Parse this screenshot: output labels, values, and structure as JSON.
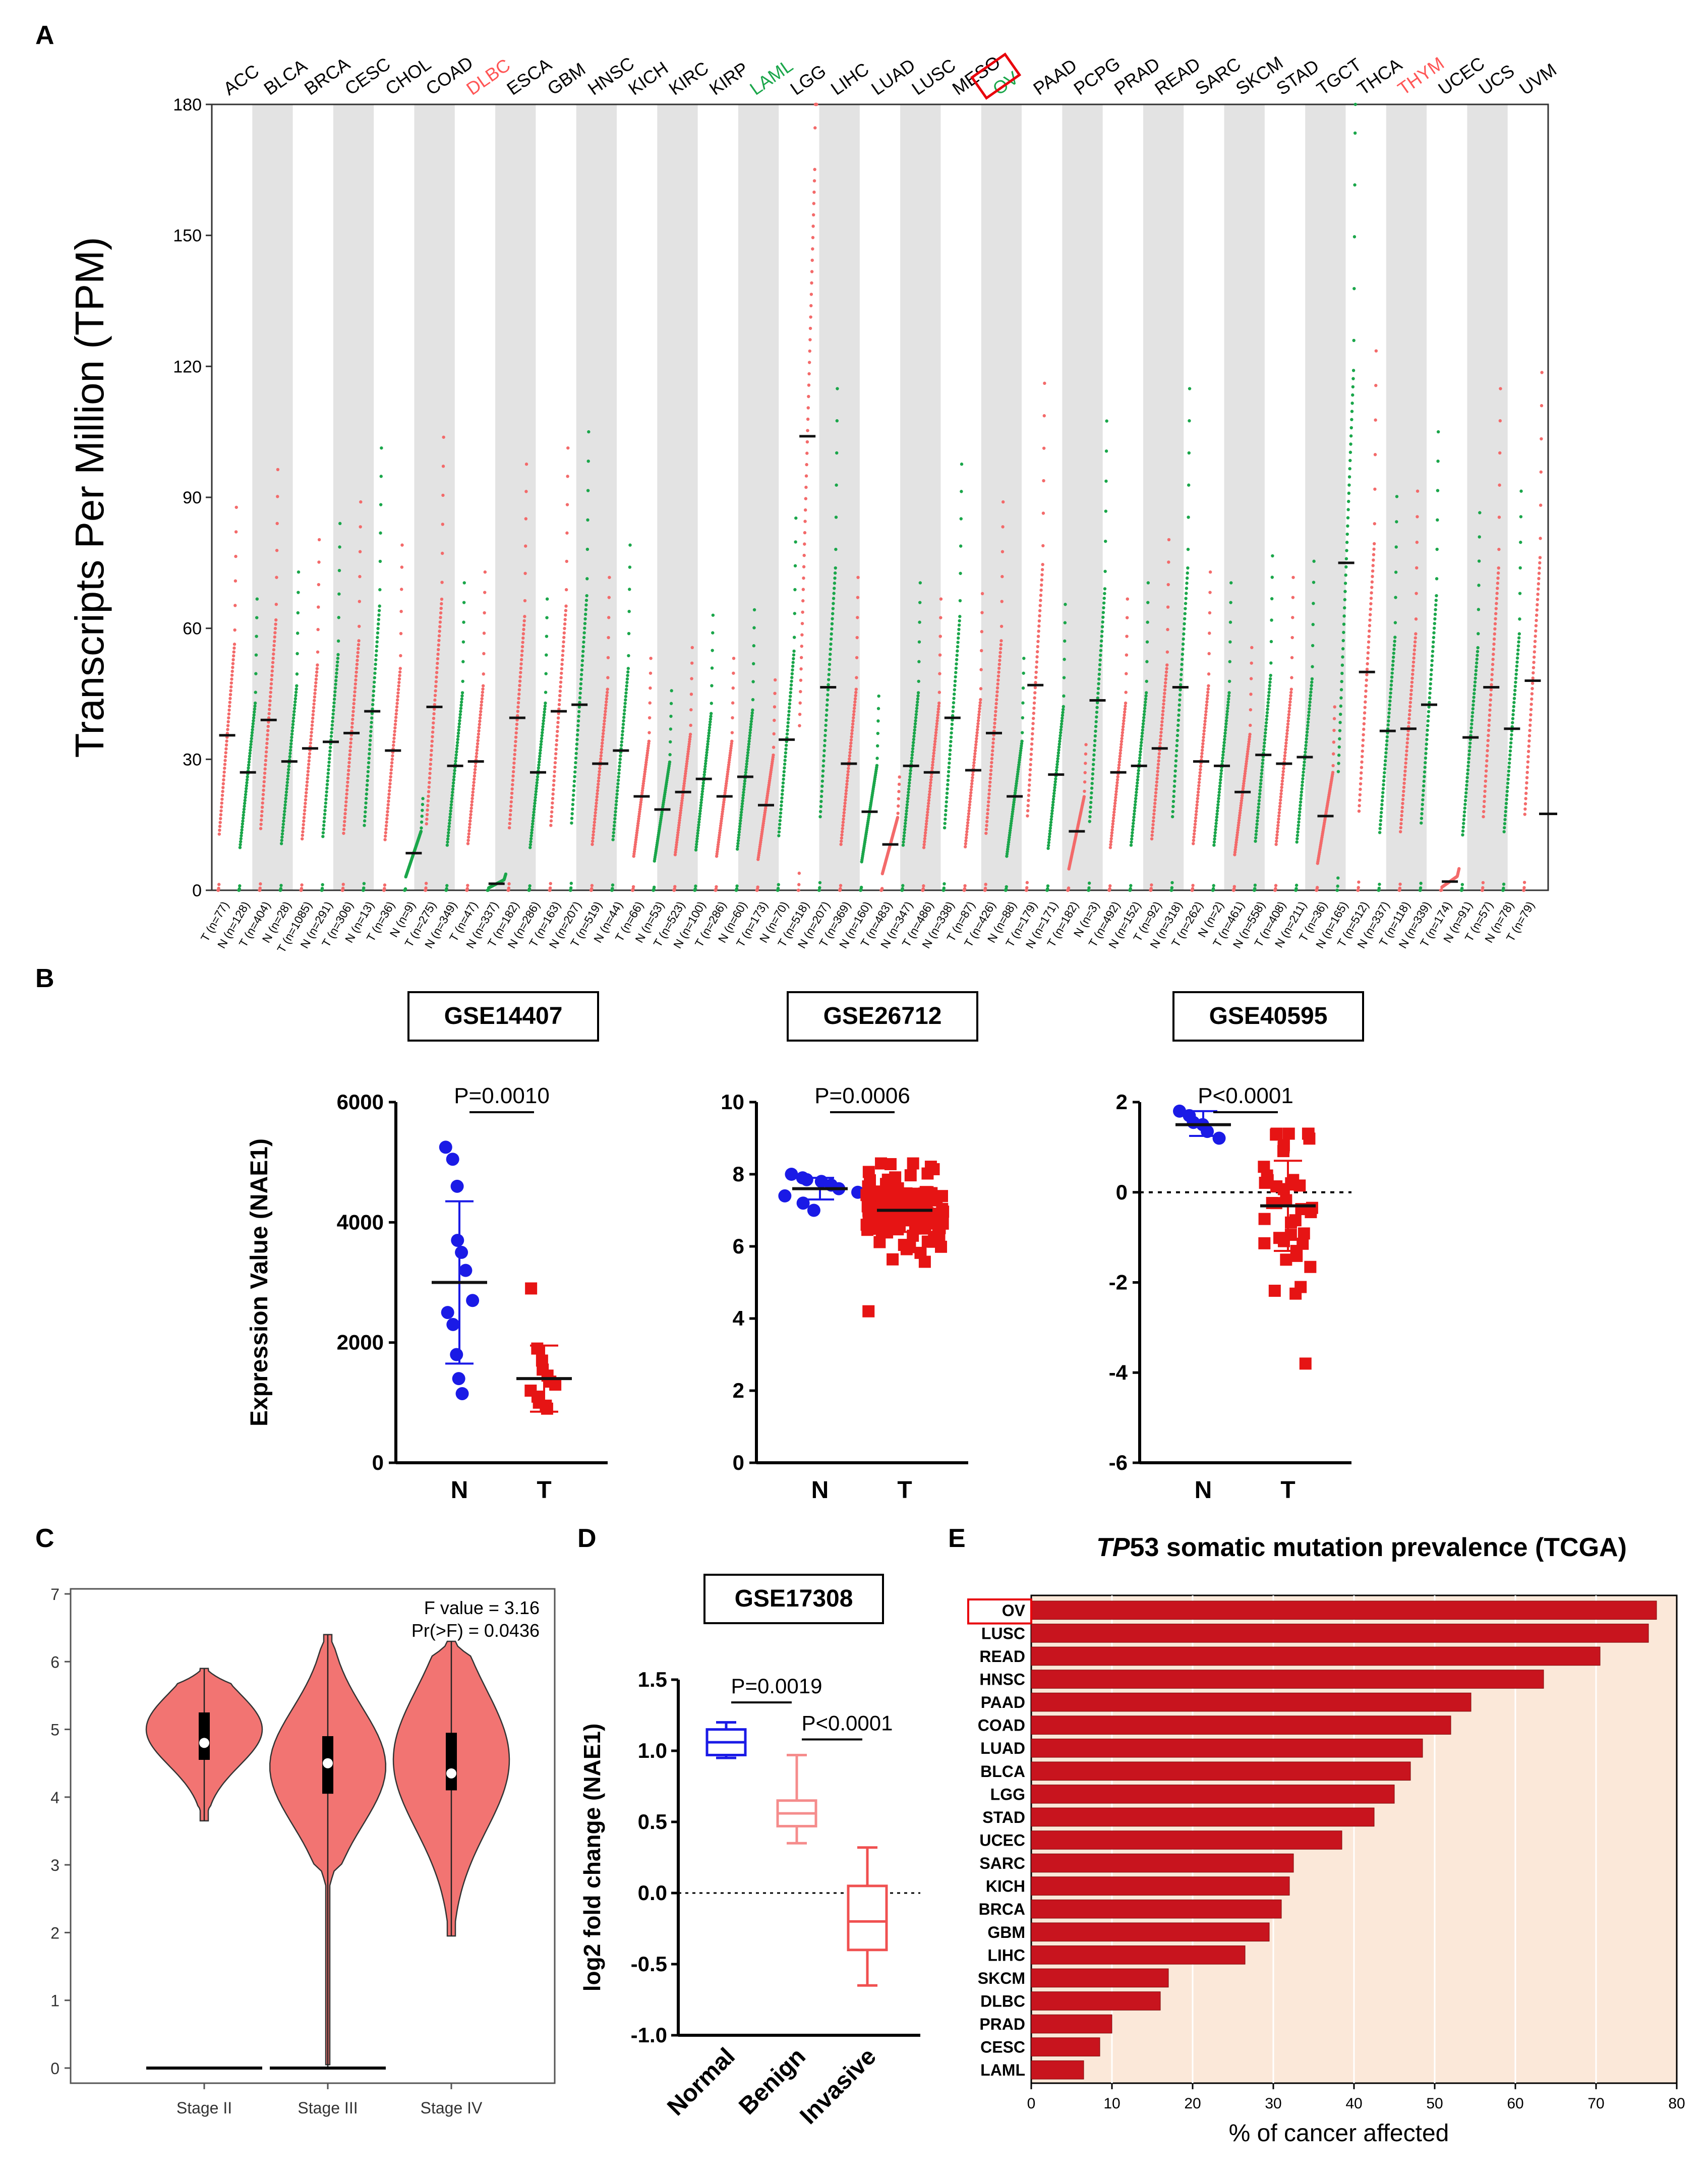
{
  "panels": {
    "a": "A",
    "b": "B",
    "c": "C",
    "d": "D",
    "e": "E"
  },
  "colors": {
    "tumor": "#f36a6a",
    "normal": "#1aa64a",
    "shade": "#e3e3e3",
    "blue": "#1a1ae6",
    "red": "#e61414",
    "violin": "#f27472",
    "bar": "#c8141e",
    "barbg": "#fbe8d9",
    "highlight_red": "#ff5555",
    "highlight_green": "#1aa64a"
  },
  "chart_data": [
    {
      "id": "A",
      "type": "scatter",
      "ylabel": "Transcripts Per Million (TPM)",
      "ylim": [
        0,
        180
      ],
      "yticks": [
        "0",
        "30",
        "60",
        "90",
        "120",
        "150",
        "180"
      ],
      "cancers": [
        "ACC",
        "BLCA",
        "BRCA",
        "CESC",
        "CHOL",
        "COAD",
        "DLBC",
        "ESCA",
        "GBM",
        "HNSC",
        "KICH",
        "KIRC",
        "KIRP",
        "LAML",
        "LGG",
        "LIHC",
        "LUAD",
        "LUSC",
        "MESO",
        "OV",
        "PAAD",
        "PCPG",
        "PRAD",
        "READ",
        "SARC",
        "SKCM",
        "STAD",
        "TGCT",
        "THCA",
        "THYM",
        "UCEC",
        "UCS",
        "UVM"
      ],
      "label_colors": {
        "DLBC": "red",
        "THYM": "red",
        "LAML": "green",
        "OV": "green"
      },
      "boxed_label": "OV",
      "groups": [
        {
          "label": "T (n=77)",
          "type": "T",
          "median": 35.5
        },
        {
          "label": "N (n=128)",
          "type": "N",
          "median": 27
        },
        {
          "label": "T (n=404)",
          "type": "T",
          "median": 39
        },
        {
          "label": "N (n=28)",
          "type": "N",
          "median": 29.5
        },
        {
          "label": "T (n=1085)",
          "type": "T",
          "median": 32.5
        },
        {
          "label": "N (n=291)",
          "type": "N",
          "median": 34
        },
        {
          "label": "T (n=306)",
          "type": "T",
          "median": 36
        },
        {
          "label": "N (n=13)",
          "type": "N",
          "median": 41
        },
        {
          "label": "T (n=36)",
          "type": "T",
          "median": 32
        },
        {
          "label": "N (n=9)",
          "type": "N",
          "median": 8.5
        },
        {
          "label": "T (n=275)",
          "type": "T",
          "median": 42
        },
        {
          "label": "N (n=349)",
          "type": "N",
          "median": 28.5
        },
        {
          "label": "T (n=47)",
          "type": "T",
          "median": 29.5
        },
        {
          "label": "N (n=337)",
          "type": "N",
          "median": 1.5
        },
        {
          "label": "T (n=182)",
          "type": "T",
          "median": 39.5
        },
        {
          "label": "N (n=286)",
          "type": "N",
          "median": 27
        },
        {
          "label": "T (n=163)",
          "type": "T",
          "median": 41
        },
        {
          "label": "N (n=207)",
          "type": "N",
          "median": 42.5
        },
        {
          "label": "T (n=519)",
          "type": "T",
          "median": 29
        },
        {
          "label": "N (n=44)",
          "type": "N",
          "median": 32
        },
        {
          "label": "T (n=66)",
          "type": "T",
          "median": 21.5
        },
        {
          "label": "N (n=53)",
          "type": "N",
          "median": 18.5
        },
        {
          "label": "T (n=523)",
          "type": "T",
          "median": 22.5
        },
        {
          "label": "N (n=100)",
          "type": "N",
          "median": 25.5
        },
        {
          "label": "T (n=286)",
          "type": "T",
          "median": 21.5
        },
        {
          "label": "N (n=60)",
          "type": "N",
          "median": 26
        },
        {
          "label": "T (n=173)",
          "type": "T",
          "median": 19.5
        },
        {
          "label": "N (n=70)",
          "type": "N",
          "median": 34.5
        },
        {
          "label": "T (n=518)",
          "type": "T",
          "median": 104
        },
        {
          "label": "N (n=207)",
          "type": "N",
          "median": 46.5
        },
        {
          "label": "T (n=369)",
          "type": "T",
          "median": 29
        },
        {
          "label": "N (n=160)",
          "type": "N",
          "median": 18
        },
        {
          "label": "T (n=483)",
          "type": "T",
          "median": 10.5
        },
        {
          "label": "N (n=347)",
          "type": "N",
          "median": 28.5
        },
        {
          "label": "T (n=486)",
          "type": "T",
          "median": 27
        },
        {
          "label": "N (n=338)",
          "type": "N",
          "median": 39.5
        },
        {
          "label": "T (n=87)",
          "type": "T",
          "median": 27.5
        },
        {
          "label": "T (n=426)",
          "type": "T",
          "median": 36
        },
        {
          "label": "N (n=88)",
          "type": "N",
          "median": 21.5
        },
        {
          "label": "T (n=179)",
          "type": "T",
          "median": 47
        },
        {
          "label": "N (n=171)",
          "type": "N",
          "median": 26.5
        },
        {
          "label": "T (n=182)",
          "type": "T",
          "median": 13.5
        },
        {
          "label": "N (n=3)",
          "type": "N",
          "median": 43.5
        },
        {
          "label": "T (n=492)",
          "type": "T",
          "median": 27
        },
        {
          "label": "N (n=152)",
          "type": "N",
          "median": 28.5
        },
        {
          "label": "T (n=92)",
          "type": "T",
          "median": 32.5
        },
        {
          "label": "N (n=318)",
          "type": "N",
          "median": 46.5
        },
        {
          "label": "T (n=262)",
          "type": "T",
          "median": 29.5
        },
        {
          "label": "N (n=2)",
          "type": "N",
          "median": 28.5
        },
        {
          "label": "T (n=461)",
          "type": "T",
          "median": 22.5
        },
        {
          "label": "N (n=558)",
          "type": "N",
          "median": 31
        },
        {
          "label": "T (n=408)",
          "type": "T",
          "median": 29
        },
        {
          "label": "N (n=211)",
          "type": "N",
          "median": 30.5
        },
        {
          "label": "T (n=36)",
          "type": "T",
          "median": 17
        },
        {
          "label": "N (n=165)",
          "type": "N",
          "median": 75
        },
        {
          "label": "T (n=512)",
          "type": "T",
          "median": 50
        },
        {
          "label": "N (n=337)",
          "type": "N",
          "median": 36.5
        },
        {
          "label": "T (n=118)",
          "type": "T",
          "median": 37
        },
        {
          "label": "N (n=339)",
          "type": "N",
          "median": 42.5
        },
        {
          "label": "T (n=174)",
          "type": "T",
          "median": 2
        },
        {
          "label": "N (n=91)",
          "type": "N",
          "median": 35
        },
        {
          "label": "T (n=57)",
          "type": "T",
          "median": 46.5
        },
        {
          "label": "N (n=78)",
          "type": "N",
          "median": 37
        },
        {
          "label": "T (n=79)",
          "type": "T",
          "median": 48
        }
      ],
      "extra_median": 17.5
    },
    {
      "id": "B1",
      "type": "scatter",
      "title": "GSE14407",
      "ylabel": "Expression Value (NAE1)",
      "ylim": [
        0,
        6000
      ],
      "yticks": [
        "0",
        "2000",
        "4000",
        "6000"
      ],
      "categories": [
        "N",
        "T"
      ],
      "pvalue": "P=0.0010",
      "N": {
        "mean": 3000,
        "sd_low": 1650,
        "sd_high": 4350,
        "values": [
          5250,
          5050,
          4600,
          3700,
          3500,
          3200,
          2700,
          2500,
          2300,
          1800,
          1400,
          1150
        ]
      },
      "T": {
        "mean": 1400,
        "sd_low": 850,
        "sd_high": 1950,
        "values": [
          2900,
          1900,
          1700,
          1550,
          1450,
          1350,
          1300,
          1200,
          1100,
          1000,
          950,
          900
        ]
      }
    },
    {
      "id": "B2",
      "type": "scatter",
      "title": "GSE26712",
      "ylim": [
        0,
        10
      ],
      "yticks": [
        "0",
        "2",
        "4",
        "6",
        "8",
        "10"
      ],
      "categories": [
        "N",
        "T"
      ],
      "pvalue": "P=0.0006",
      "N": {
        "mean": 7.6,
        "sd_low": 7.3,
        "sd_high": 7.9,
        "values": [
          8.0,
          7.9,
          7.85,
          7.8,
          7.7,
          7.6,
          7.5,
          7.4,
          7.2,
          7.0
        ]
      },
      "T": {
        "mean": 7.0,
        "sd_low": 6.4,
        "sd_high": 7.6,
        "values_range": [
          4.2,
          8.3
        ]
      }
    },
    {
      "id": "B3",
      "type": "scatter",
      "title": "GSE40595",
      "ylim": [
        -6,
        2
      ],
      "yticks": [
        "-6",
        "-4",
        "-2",
        "0",
        "2"
      ],
      "categories": [
        "N",
        "T"
      ],
      "pvalue": "P<0.0001",
      "N": {
        "mean": 1.5,
        "sd_low": 1.25,
        "sd_high": 1.8,
        "values": [
          1.8,
          1.7,
          1.55,
          1.5,
          1.35,
          1.2
        ]
      },
      "T": {
        "mean": -0.3,
        "sd_low": -1.3,
        "sd_high": 0.7,
        "values_range": [
          -3.8,
          1.3
        ]
      }
    },
    {
      "id": "C",
      "type": "violin",
      "ylim": [
        0,
        7
      ],
      "yticks": [
        "0",
        "1",
        "2",
        "3",
        "4",
        "5",
        "6",
        "7"
      ],
      "categories": [
        "Stage II",
        "Stage III",
        "Stage IV"
      ],
      "annotation_f": "F value = 3.16",
      "annotation_p": "Pr(>F) = 0.0436",
      "violins": [
        {
          "min": 3.65,
          "max": 5.9,
          "q1": 4.55,
          "q3": 5.25,
          "median": 4.8,
          "mode": 5.0,
          "tail": 0
        },
        {
          "min": 2.8,
          "max": 6.4,
          "q1": 4.05,
          "q3": 4.9,
          "median": 4.5,
          "mode": 4.45,
          "tail": 1
        },
        {
          "min": 1.95,
          "max": 6.3,
          "q1": 4.1,
          "q3": 4.95,
          "median": 4.35,
          "mode": 4.55,
          "tail": 0
        }
      ],
      "zero_lines": [
        "Stage II",
        "Stage III"
      ]
    },
    {
      "id": "D",
      "type": "box",
      "title": "GSE17308",
      "ylabel": "log2 fold change (NAE1)",
      "ylim": [
        -1.0,
        1.5
      ],
      "yticks": [
        "-1.0",
        "-0.5",
        "0.0",
        "0.5",
        "1.0",
        "1.5"
      ],
      "categories": [
        "Normal",
        "Benign",
        "Invasive"
      ],
      "p1": "P=0.0019",
      "p2": "P<0.0001",
      "boxes": [
        {
          "min": 0.95,
          "q1": 0.97,
          "median": 1.06,
          "q3": 1.15,
          "max": 1.2
        },
        {
          "min": 0.35,
          "q1": 0.47,
          "median": 0.56,
          "q3": 0.65,
          "max": 0.97
        },
        {
          "min": -0.65,
          "q1": -0.4,
          "median": -0.2,
          "q3": 0.05,
          "max": 0.32
        }
      ]
    },
    {
      "id": "E",
      "type": "bar",
      "orientation": "horizontal",
      "title_italic": "TP",
      "title_rest": "53 somatic mutation prevalence (TCGA)",
      "xlabel": "% of cancer affected",
      "xlim": [
        0,
        80
      ],
      "xticks": [
        "0",
        "10",
        "20",
        "30",
        "40",
        "50",
        "60",
        "70",
        "80"
      ],
      "boxed_category": "OV",
      "categories": [
        "OV",
        "LUSC",
        "READ",
        "HNSC",
        "PAAD",
        "COAD",
        "LUAD",
        "BLCA",
        "LGG",
        "STAD",
        "UCEC",
        "SARC",
        "KICH",
        "BRCA",
        "GBM",
        "LIHC",
        "SKCM",
        "DLBC",
        "PRAD",
        "CESC",
        "LAML"
      ],
      "values": [
        77.5,
        76.5,
        70.5,
        63.5,
        54.5,
        52,
        48.5,
        47,
        45,
        42.5,
        38.5,
        32.5,
        32,
        31,
        29.5,
        26.5,
        17,
        16,
        10,
        8.5,
        6.5
      ]
    }
  ]
}
